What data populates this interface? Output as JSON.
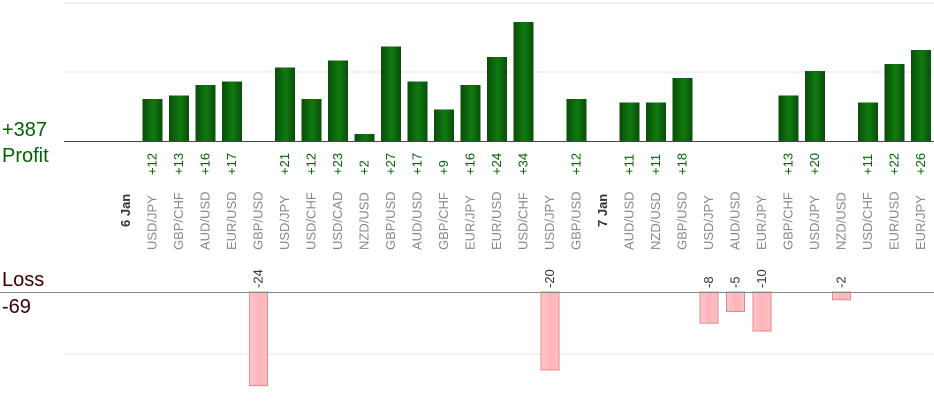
{
  "summary": {
    "profit_total": "+387",
    "profit_label": "Profit",
    "loss_label": "Loss",
    "loss_total": "-69"
  },
  "colors": {
    "profit_bar_dark": "#0a4d0a",
    "profit_bar_light": "#0f7a0f",
    "profit_text": "#006400",
    "loss_bar_fill": "#ffb3b8",
    "loss_bar_stroke": "#e08a92",
    "loss_text": "#333333",
    "loss_label": "#3a0000",
    "grid": "#e6e6e6",
    "axis": "#888888",
    "tick_text": "#888888"
  },
  "chart_data": {
    "type": "bar",
    "profit_axis_max": 20,
    "loss_axis_max": 16,
    "categories": [
      {
        "day": "6 Jan"
      },
      {
        "pair": "USD/JPY",
        "value": 12
      },
      {
        "pair": "GBP/CHF",
        "value": 13
      },
      {
        "pair": "AUD/USD",
        "value": 16
      },
      {
        "pair": "EUR/USD",
        "value": 17
      },
      {
        "pair": "GBP/USD",
        "value": -24
      },
      {
        "pair": "USD/JPY",
        "value": 21
      },
      {
        "pair": "USD/CHF",
        "value": 12
      },
      {
        "pair": "USD/CAD",
        "value": 23
      },
      {
        "pair": "NZD/USD",
        "value": 2
      },
      {
        "pair": "GBP/USD",
        "value": 27
      },
      {
        "pair": "AUD/USD",
        "value": 17
      },
      {
        "pair": "GBP/CHF",
        "value": 9
      },
      {
        "pair": "EUR/JPY",
        "value": 16
      },
      {
        "pair": "EUR/USD",
        "value": 24
      },
      {
        "pair": "USD/CHF",
        "value": 34
      },
      {
        "pair": "USD/JPY",
        "value": -20
      },
      {
        "pair": "GBP/USD",
        "value": 12
      },
      {
        "day": "7 Jan"
      },
      {
        "pair": "AUD/USD",
        "value": 11
      },
      {
        "pair": "NZD/USD",
        "value": 11
      },
      {
        "pair": "GBP/USD",
        "value": 18
      },
      {
        "pair": "USD/JPY",
        "value": -8
      },
      {
        "pair": "AUD/USD",
        "value": -5
      },
      {
        "pair": "EUR/JPY",
        "value": -10
      },
      {
        "pair": "GBP/CHF",
        "value": 13
      },
      {
        "pair": "USD/JPY",
        "value": 20
      },
      {
        "pair": "NZD/USD",
        "value": -2
      },
      {
        "pair": "USD/CHF",
        "value": 11
      },
      {
        "pair": "EUR/USD",
        "value": 22
      },
      {
        "pair": "EUR/JPY",
        "value": 26
      }
    ]
  }
}
